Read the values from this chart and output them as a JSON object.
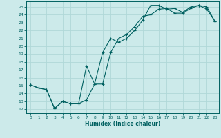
{
  "xlabel": "Humidex (Indice chaleur)",
  "bg_color": "#cceaea",
  "grid_color": "#b0d8d8",
  "line_color": "#006060",
  "xlim": [
    -0.5,
    23.5
  ],
  "ylim": [
    11.5,
    25.7
  ],
  "xticks": [
    0,
    1,
    2,
    3,
    4,
    5,
    6,
    7,
    8,
    9,
    10,
    11,
    12,
    13,
    14,
    15,
    16,
    17,
    18,
    19,
    20,
    21,
    22,
    23
  ],
  "yticks": [
    12,
    13,
    14,
    15,
    16,
    17,
    18,
    19,
    20,
    21,
    22,
    23,
    24,
    25
  ],
  "line1_x": [
    0,
    1,
    2,
    3,
    4,
    5,
    6,
    7,
    8,
    9,
    10,
    11,
    12,
    13,
    14,
    15,
    16,
    17,
    18,
    19,
    20,
    21,
    22,
    23
  ],
  "line1_y": [
    15.1,
    14.7,
    14.5,
    12.1,
    13.0,
    12.7,
    12.7,
    13.2,
    15.2,
    19.2,
    21.0,
    20.5,
    21.0,
    22.0,
    23.3,
    25.2,
    25.2,
    24.7,
    24.8,
    24.3,
    25.0,
    25.2,
    25.0,
    23.2
  ],
  "line2_x": [
    0,
    1,
    2,
    3,
    4,
    5,
    6,
    7,
    8,
    9,
    10,
    11,
    12,
    13,
    14,
    15,
    16,
    17,
    18,
    19,
    20,
    21,
    22,
    23
  ],
  "line2_y": [
    15.1,
    14.7,
    14.5,
    12.1,
    13.0,
    12.7,
    12.7,
    17.5,
    15.2,
    15.2,
    19.2,
    21.0,
    21.5,
    22.5,
    23.8,
    24.0,
    24.7,
    24.8,
    24.2,
    24.2,
    24.8,
    25.2,
    24.7,
    23.2
  ]
}
